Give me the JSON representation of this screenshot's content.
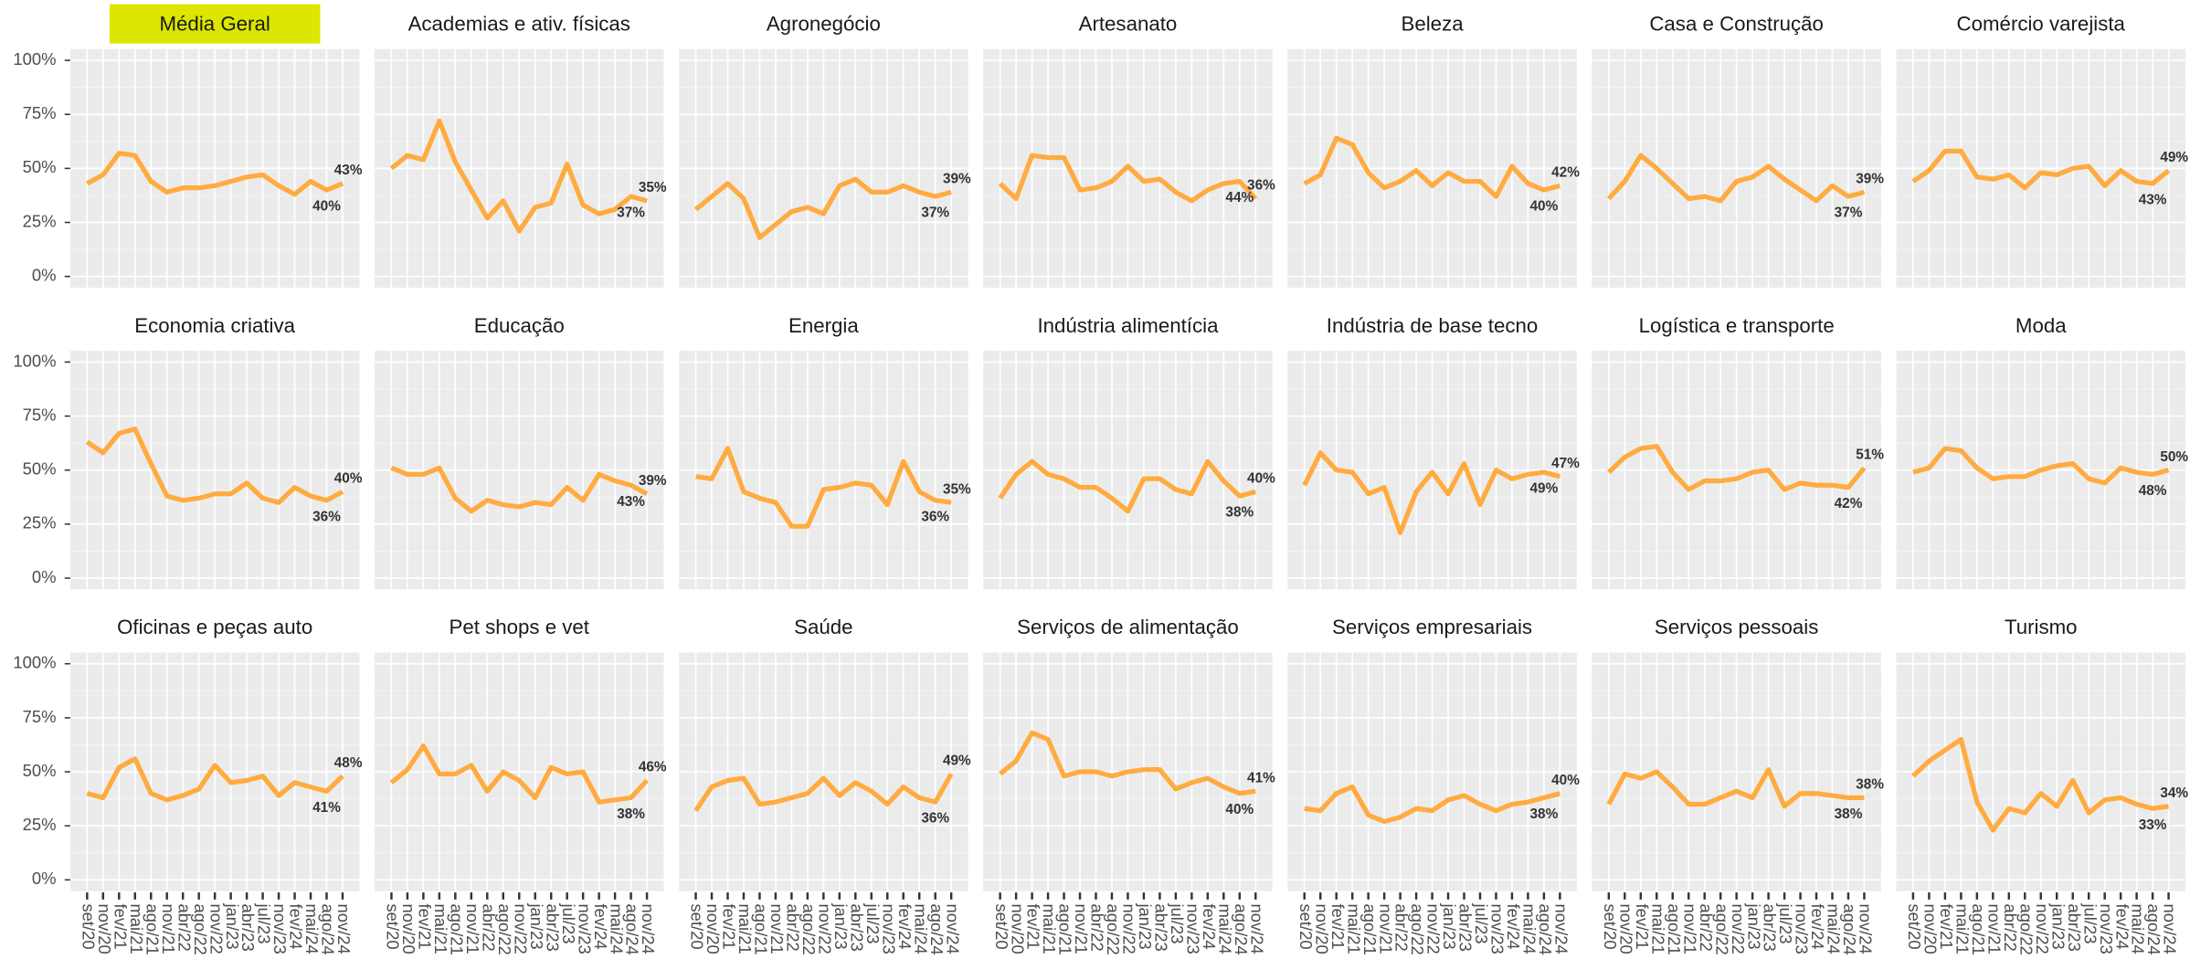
{
  "chart_data": {
    "type": "line",
    "facet": true,
    "color": "#ffab40",
    "ylim": [
      0,
      100
    ],
    "yticks": [
      {
        "value": 0,
        "label": "0%"
      },
      {
        "value": 25,
        "label": "25%"
      },
      {
        "value": 50,
        "label": "50%"
      },
      {
        "value": 75,
        "label": "75%"
      },
      {
        "value": 100,
        "label": "100%"
      }
    ],
    "grid": true,
    "categories": [
      "set/20",
      "nov/20",
      "fev/21",
      "mai/21",
      "ago/21",
      "nov/21",
      "abr/22",
      "ago/22",
      "nov/22",
      "jan/23",
      "abr/23",
      "jul/23",
      "nov/23",
      "fev/24",
      "mai/24",
      "ago/24",
      "nov/24"
    ],
    "series": [
      {
        "name": "Média Geral",
        "highlight": "#dce600",
        "values": [
          43,
          47,
          57,
          56,
          44,
          39,
          41,
          41,
          42,
          44,
          46,
          47,
          42,
          38,
          44,
          40,
          43
        ],
        "value_labels": [
          null,
          null,
          null,
          null,
          null,
          null,
          null,
          null,
          null,
          null,
          null,
          null,
          null,
          null,
          null,
          "40%",
          "43%"
        ]
      },
      {
        "name": "Academias e ativ. físicas",
        "values": [
          50,
          56,
          54,
          72,
          53,
          40,
          27,
          35,
          21,
          32,
          34,
          52,
          33,
          29,
          31,
          37,
          35
        ],
        "value_labels": [
          null,
          null,
          null,
          null,
          null,
          null,
          null,
          null,
          null,
          null,
          null,
          null,
          null,
          null,
          null,
          "37%",
          "35%"
        ]
      },
      {
        "name": "Agronegócio",
        "values": [
          31,
          37,
          43,
          36,
          18,
          24,
          30,
          32,
          29,
          42,
          45,
          39,
          39,
          42,
          39,
          37,
          39
        ],
        "value_labels": [
          null,
          null,
          null,
          null,
          null,
          null,
          null,
          null,
          null,
          null,
          null,
          null,
          null,
          null,
          null,
          "37%",
          "39%"
        ]
      },
      {
        "name": "Artesanato",
        "values": [
          43,
          36,
          56,
          55,
          55,
          40,
          41,
          44,
          51,
          44,
          45,
          39,
          35,
          40,
          43,
          44,
          36
        ],
        "value_labels": [
          null,
          null,
          null,
          null,
          null,
          null,
          null,
          null,
          null,
          null,
          null,
          null,
          null,
          null,
          null,
          "44%",
          "36%"
        ]
      },
      {
        "name": "Beleza",
        "values": [
          43,
          47,
          64,
          61,
          48,
          41,
          44,
          49,
          42,
          48,
          44,
          44,
          37,
          51,
          43,
          40,
          42
        ],
        "value_labels": [
          null,
          null,
          null,
          null,
          null,
          null,
          null,
          null,
          null,
          null,
          null,
          null,
          null,
          null,
          null,
          "40%",
          "42%"
        ]
      },
      {
        "name": "Casa e Construção",
        "values": [
          36,
          44,
          56,
          50,
          43,
          36,
          37,
          35,
          44,
          46,
          51,
          45,
          40,
          35,
          42,
          37,
          39
        ],
        "value_labels": [
          null,
          null,
          null,
          null,
          null,
          null,
          null,
          null,
          null,
          null,
          null,
          null,
          null,
          null,
          null,
          "37%",
          "39%"
        ]
      },
      {
        "name": "Comércio varejista",
        "values": [
          44,
          49,
          58,
          58,
          46,
          45,
          47,
          41,
          48,
          47,
          50,
          51,
          42,
          49,
          44,
          43,
          49
        ],
        "value_labels": [
          null,
          null,
          null,
          null,
          null,
          null,
          null,
          null,
          null,
          null,
          null,
          null,
          null,
          null,
          null,
          "43%",
          "49%"
        ]
      },
      {
        "name": "Economia criativa",
        "values": [
          63,
          58,
          67,
          69,
          53,
          38,
          36,
          37,
          39,
          39,
          44,
          37,
          35,
          42,
          38,
          36,
          40
        ],
        "value_labels": [
          null,
          null,
          null,
          null,
          null,
          null,
          null,
          null,
          null,
          null,
          null,
          null,
          null,
          null,
          null,
          "36%",
          "40%"
        ]
      },
      {
        "name": "Educação",
        "values": [
          51,
          48,
          48,
          51,
          37,
          31,
          36,
          34,
          33,
          35,
          34,
          42,
          36,
          48,
          45,
          43,
          39
        ],
        "value_labels": [
          null,
          null,
          null,
          null,
          null,
          null,
          null,
          null,
          null,
          null,
          null,
          null,
          null,
          null,
          null,
          "43%",
          "39%"
        ]
      },
      {
        "name": "Energia",
        "values": [
          47,
          46,
          60,
          40,
          37,
          35,
          24,
          24,
          41,
          42,
          44,
          43,
          34,
          54,
          40,
          36,
          35
        ],
        "value_labels": [
          null,
          null,
          null,
          null,
          null,
          null,
          null,
          null,
          null,
          null,
          null,
          null,
          null,
          null,
          null,
          "36%",
          "35%"
        ]
      },
      {
        "name": "Indústria alimentícia",
        "values": [
          37,
          48,
          54,
          48,
          46,
          42,
          42,
          37,
          31,
          46,
          46,
          41,
          39,
          54,
          45,
          38,
          40
        ],
        "value_labels": [
          null,
          null,
          null,
          null,
          null,
          null,
          null,
          null,
          null,
          null,
          null,
          null,
          null,
          null,
          null,
          "38%",
          "40%"
        ]
      },
      {
        "name": "Indústria de base tecno",
        "values": [
          43,
          58,
          50,
          49,
          39,
          42,
          21,
          40,
          49,
          39,
          53,
          34,
          50,
          46,
          48,
          49,
          47
        ],
        "value_labels": [
          null,
          null,
          null,
          null,
          null,
          null,
          null,
          null,
          null,
          null,
          null,
          null,
          null,
          null,
          null,
          "49%",
          "47%"
        ]
      },
      {
        "name": "Logística e transporte",
        "values": [
          49,
          56,
          60,
          61,
          49,
          41,
          45,
          45,
          46,
          49,
          50,
          41,
          44,
          43,
          43,
          42,
          51
        ],
        "value_labels": [
          null,
          null,
          null,
          null,
          null,
          null,
          null,
          null,
          null,
          null,
          null,
          null,
          null,
          null,
          null,
          "42%",
          "51%"
        ]
      },
      {
        "name": "Moda",
        "values": [
          49,
          51,
          60,
          59,
          51,
          46,
          47,
          47,
          50,
          52,
          53,
          46,
          44,
          51,
          49,
          48,
          50
        ],
        "value_labels": [
          null,
          null,
          null,
          null,
          null,
          null,
          null,
          null,
          null,
          null,
          null,
          null,
          null,
          null,
          null,
          "48%",
          "50%"
        ]
      },
      {
        "name": "Oficinas e peças auto",
        "values": [
          40,
          38,
          52,
          56,
          40,
          37,
          39,
          42,
          53,
          45,
          46,
          48,
          39,
          45,
          43,
          41,
          48
        ],
        "value_labels": [
          null,
          null,
          null,
          null,
          null,
          null,
          null,
          null,
          null,
          null,
          null,
          null,
          null,
          null,
          null,
          "41%",
          "48%"
        ]
      },
      {
        "name": "Pet shops e vet",
        "values": [
          45,
          51,
          62,
          49,
          49,
          53,
          41,
          50,
          46,
          38,
          52,
          49,
          50,
          36,
          37,
          38,
          46
        ],
        "value_labels": [
          null,
          null,
          null,
          null,
          null,
          null,
          null,
          null,
          null,
          null,
          null,
          null,
          null,
          null,
          null,
          "38%",
          "46%"
        ]
      },
      {
        "name": "Saúde",
        "values": [
          32,
          43,
          46,
          47,
          35,
          36,
          38,
          40,
          47,
          39,
          45,
          41,
          35,
          43,
          38,
          36,
          49
        ],
        "value_labels": [
          null,
          null,
          null,
          null,
          null,
          null,
          null,
          null,
          null,
          null,
          null,
          null,
          null,
          null,
          null,
          "36%",
          "49%"
        ]
      },
      {
        "name": "Serviços de alimentação",
        "values": [
          49,
          55,
          68,
          65,
          48,
          50,
          50,
          48,
          50,
          51,
          51,
          42,
          45,
          47,
          43,
          40,
          41
        ],
        "value_labels": [
          null,
          null,
          null,
          null,
          null,
          null,
          null,
          null,
          null,
          null,
          null,
          null,
          null,
          null,
          null,
          "40%",
          "41%"
        ]
      },
      {
        "name": "Serviços empresariais",
        "values": [
          33,
          32,
          40,
          43,
          30,
          27,
          29,
          33,
          32,
          37,
          39,
          35,
          32,
          35,
          36,
          38,
          40
        ],
        "value_labels": [
          null,
          null,
          null,
          null,
          null,
          null,
          null,
          null,
          null,
          null,
          null,
          null,
          null,
          null,
          null,
          "38%",
          "40%"
        ]
      },
      {
        "name": "Serviços pessoais",
        "values": [
          35,
          49,
          47,
          50,
          43,
          35,
          35,
          38,
          41,
          38,
          51,
          34,
          40,
          40,
          39,
          38,
          38
        ],
        "value_labels": [
          null,
          null,
          null,
          null,
          null,
          null,
          null,
          null,
          null,
          null,
          null,
          null,
          null,
          null,
          null,
          "38%",
          "38%"
        ]
      },
      {
        "name": "Turismo",
        "values": [
          48,
          55,
          60,
          65,
          36,
          23,
          33,
          31,
          40,
          34,
          46,
          31,
          37,
          38,
          35,
          33,
          34
        ],
        "value_labels": [
          null,
          null,
          null,
          null,
          null,
          null,
          null,
          null,
          null,
          null,
          null,
          null,
          null,
          null,
          null,
          "33%",
          "34%"
        ]
      }
    ]
  }
}
